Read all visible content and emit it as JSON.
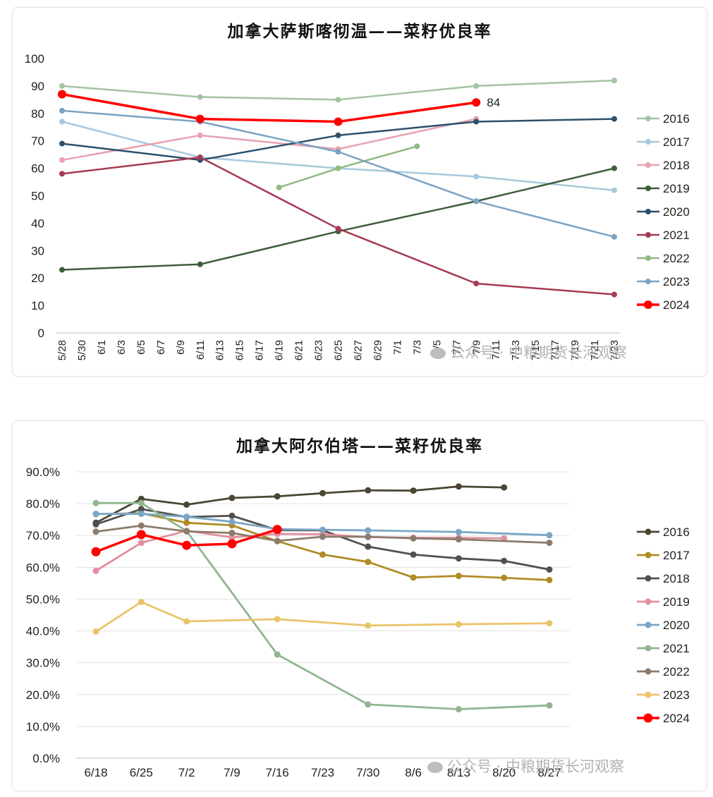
{
  "chart_data": [
    {
      "type": "line",
      "title": "加拿大萨斯喀彻温——菜籽优良率",
      "categories": [
        "5/28",
        "5/30",
        "6/1",
        "6/3",
        "6/5",
        "6/7",
        "6/9",
        "6/11",
        "6/13",
        "6/15",
        "6/17",
        "6/19",
        "6/21",
        "6/23",
        "6/25",
        "6/27",
        "6/29",
        "7/1",
        "7/3",
        "7/5",
        "7/7",
        "7/9",
        "7/11",
        "7/13",
        "7/15",
        "7/17",
        "7/19",
        "7/21",
        "7/23"
      ],
      "ylim": [
        0,
        100
      ],
      "yticks": [
        "0",
        "10",
        "20",
        "30",
        "40",
        "50",
        "60",
        "70",
        "80",
        "90",
        "100"
      ],
      "grid": false,
      "legend": "right",
      "series": [
        {
          "name": "2016",
          "color": "#a5c3a2",
          "points": [
            [
              "5/28",
              90
            ],
            [
              "6/11",
              86
            ],
            [
              "6/25",
              85
            ],
            [
              "7/9",
              90
            ],
            [
              "7/23",
              92
            ]
          ]
        },
        {
          "name": "2017",
          "color": "#a8c8dc",
          "points": [
            [
              "5/28",
              77
            ],
            [
              "6/11",
              64
            ],
            [
              "6/25",
              60
            ],
            [
              "7/9",
              57
            ],
            [
              "7/23",
              52
            ]
          ]
        },
        {
          "name": "2018",
          "color": "#e8a2b0",
          "points": [
            [
              "5/28",
              63
            ],
            [
              "6/11",
              72
            ],
            [
              "6/25",
              67
            ],
            [
              "7/9",
              78
            ]
          ]
        },
        {
          "name": "2019",
          "color": "#3e5e3c",
          "points": [
            [
              "5/28",
              23
            ],
            [
              "6/11",
              25
            ],
            [
              "6/25",
              37
            ],
            [
              "7/9",
              48
            ],
            [
              "7/23",
              60
            ]
          ]
        },
        {
          "name": "2020",
          "color": "#2b4f6b",
          "points": [
            [
              "5/28",
              69
            ],
            [
              "6/11",
              63
            ],
            [
              "6/25",
              72
            ],
            [
              "7/9",
              77
            ],
            [
              "7/23",
              78
            ]
          ]
        },
        {
          "name": "2021",
          "color": "#a63a52",
          "points": [
            [
              "5/28",
              58
            ],
            [
              "6/11",
              64
            ],
            [
              "6/25",
              38
            ],
            [
              "7/9",
              18
            ],
            [
              "7/23",
              14
            ]
          ]
        },
        {
          "name": "2022",
          "color": "#8fba82",
          "points": [
            [
              "6/19",
              53
            ],
            [
              "6/25",
              60
            ],
            [
              "7/3",
              68
            ]
          ]
        },
        {
          "name": "2023",
          "color": "#7ba3c4",
          "points": [
            [
              "5/28",
              81
            ],
            [
              "6/11",
              77
            ],
            [
              "6/25",
              66
            ],
            [
              "7/9",
              48
            ],
            [
              "7/23",
              35
            ]
          ]
        },
        {
          "name": "2024",
          "color": "#ff0000",
          "points": [
            [
              "5/28",
              87
            ],
            [
              "6/11",
              78
            ],
            [
              "6/25",
              77
            ],
            [
              "7/9",
              84
            ]
          ]
        }
      ],
      "annotations": [
        {
          "text": "84",
          "x": "7/9",
          "y": 84
        }
      ]
    },
    {
      "type": "line",
      "title": "加拿大阿尔伯塔——菜籽优良率",
      "categories": [
        "6/18",
        "6/25",
        "7/2",
        "7/9",
        "7/16",
        "7/23",
        "7/30",
        "8/6",
        "8/13",
        "8/20",
        "8/27"
      ],
      "ylim": [
        0,
        90
      ],
      "yticks": [
        "0.0%",
        "10.0%",
        "20.0%",
        "30.0%",
        "40.0%",
        "50.0%",
        "60.0%",
        "70.0%",
        "80.0%",
        "90.0%"
      ],
      "grid": true,
      "legend": "right",
      "series": [
        {
          "name": "2016",
          "color": "#4a4632",
          "values": [
            74,
            81.5,
            79.7,
            81.8,
            82.3,
            83.3,
            84.2,
            84.1,
            85.4,
            85.1,
            null
          ]
        },
        {
          "name": "2017",
          "color": "#b08b25",
          "values": [
            76.7,
            77,
            74,
            73.2,
            68.2,
            64,
            61.7,
            56.8,
            57.3,
            56.7,
            56
          ]
        },
        {
          "name": "2018",
          "color": "#505050",
          "values": [
            73.5,
            78.3,
            75.8,
            76.2,
            71.7,
            71.6,
            66.5,
            64,
            62.8,
            62,
            59.3
          ]
        },
        {
          "name": "2019",
          "color": "#e28f9f",
          "values": [
            58.9,
            67.7,
            71.5,
            69.4,
            70.5,
            70.4,
            69.5,
            69.3,
            69.3,
            69.1,
            null
          ]
        },
        {
          "name": "2020",
          "color": "#7aa6c6",
          "values": [
            76.8,
            76.8,
            75.9,
            74.3,
            72,
            71.8,
            71.6,
            null,
            71.1,
            null,
            70.1
          ]
        },
        {
          "name": "2021",
          "color": "#90b58f",
          "values": [
            80.2,
            80.2,
            71.4,
            null,
            32.6,
            null,
            16.9,
            null,
            15.4,
            null,
            16.6
          ]
        },
        {
          "name": "2022",
          "color": "#8c7b6b",
          "values": [
            71.2,
            73.1,
            71.3,
            70.8,
            68.3,
            69.6,
            69.6,
            69.1,
            68.8,
            null,
            67.7
          ]
        },
        {
          "name": "2023",
          "color": "#eac46a",
          "values": [
            39.8,
            49.1,
            43,
            null,
            43.7,
            null,
            41.7,
            null,
            42.1,
            null,
            42.4
          ]
        },
        {
          "name": "2024",
          "color": "#ff0000",
          "values": [
            64.9,
            70.3,
            66.9,
            67.4,
            71.9,
            null,
            null,
            null,
            null,
            null,
            null
          ]
        }
      ]
    }
  ],
  "watermark": "公众号 · 中粮期货长河观察"
}
